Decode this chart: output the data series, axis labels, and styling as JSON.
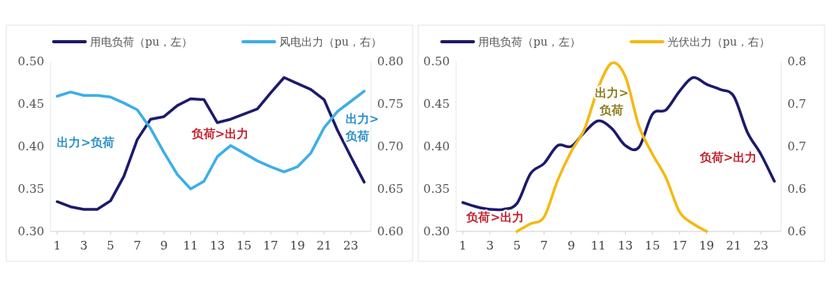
{
  "chart_data": [
    {
      "type": "line",
      "x": [
        1,
        2,
        3,
        4,
        5,
        6,
        7,
        8,
        9,
        10,
        11,
        12,
        13,
        14,
        15,
        16,
        17,
        18,
        19,
        20,
        21,
        22,
        23,
        24
      ],
      "xlim": [
        0.5,
        24.5
      ],
      "xticks": [
        1,
        3,
        5,
        7,
        9,
        11,
        13,
        15,
        17,
        19,
        21,
        23
      ],
      "ylim": [
        0.3,
        0.5
      ],
      "yticks": [
        {
          "value": 0.3,
          "label": "0.30"
        },
        {
          "value": 0.35,
          "label": "0.35"
        },
        {
          "value": 0.4,
          "label": "0.40"
        },
        {
          "value": 0.45,
          "label": "0.45"
        },
        {
          "value": 0.5,
          "label": "0.50"
        }
      ],
      "y2lim": [
        0.6,
        0.8
      ],
      "y2ticks": [
        {
          "value": 0.6,
          "label": "0.60"
        },
        {
          "value": 0.65,
          "label": "0.65"
        },
        {
          "value": 0.7,
          "label": "0.70"
        },
        {
          "value": 0.75,
          "label": "0.75"
        },
        {
          "value": 0.8,
          "label": "0.80"
        }
      ],
      "legend": "top",
      "series": [
        {
          "name": "用电负荷（pu，左）",
          "color": "#1c1a6b",
          "values": [
            0.335,
            0.329,
            0.326,
            0.326,
            0.336,
            0.365,
            0.408,
            0.432,
            0.435,
            0.448,
            0.456,
            0.455,
            0.428,
            0.432,
            0.438,
            0.444,
            0.463,
            0.481,
            0.474,
            0.467,
            0.455,
            0.419,
            0.388,
            0.358
          ]
        },
        {
          "name": "风电出力（pu，右）",
          "color": "#3daee9",
          "axis": "y2",
          "values": [
            0.759,
            0.764,
            0.76,
            0.76,
            0.758,
            0.751,
            0.743,
            0.721,
            0.693,
            0.667,
            0.65,
            0.659,
            0.688,
            0.701,
            0.692,
            0.683,
            0.676,
            0.67,
            0.676,
            0.692,
            0.722,
            0.741,
            0.753,
            0.765
          ]
        }
      ],
      "annotations": [
        "出力>负荷",
        "负荷>出力",
        "出力>负荷"
      ]
    },
    {
      "type": "line",
      "x": [
        1,
        2,
        3,
        4,
        5,
        6,
        7,
        8,
        9,
        10,
        11,
        12,
        13,
        14,
        15,
        16,
        17,
        18,
        19,
        20,
        21,
        22,
        23,
        24
      ],
      "xlim": [
        0.5,
        24.5
      ],
      "xticks": [
        1,
        3,
        5,
        7,
        9,
        11,
        13,
        15,
        17,
        19,
        21,
        23
      ],
      "ylim": [
        0.3,
        0.5
      ],
      "yticks": [
        {
          "value": 0.3,
          "label": "0.30"
        },
        {
          "value": 0.35,
          "label": "0.35"
        },
        {
          "value": 0.4,
          "label": "0.40"
        },
        {
          "value": 0.45,
          "label": "0.45"
        },
        {
          "value": 0.5,
          "label": "0.50"
        }
      ],
      "y2lim": [
        0.6,
        0.8
      ],
      "y2ticks": [
        {
          "value": 0.6,
          "label": "0.6"
        },
        {
          "value": 0.65,
          "label": "0.6"
        },
        {
          "value": 0.7,
          "label": "0.7"
        },
        {
          "value": 0.75,
          "label": "0.7"
        },
        {
          "value": 0.8,
          "label": "0.8"
        }
      ],
      "legend": "top",
      "series": [
        {
          "name": "用电负荷（pu，左）",
          "color": "#1c1a6b",
          "values": [
            0.334,
            0.329,
            0.326,
            0.326,
            0.333,
            0.368,
            0.38,
            0.401,
            0.4,
            0.417,
            0.43,
            0.421,
            0.401,
            0.399,
            0.438,
            0.443,
            0.465,
            0.481,
            0.473,
            0.467,
            0.459,
            0.417,
            0.391,
            0.359
          ]
        },
        {
          "name": "光伏出力（pu，右）",
          "color": "#f5b914",
          "axis": "y2",
          "values": [
            null,
            null,
            null,
            null,
            0.6,
            0.609,
            0.617,
            0.66,
            0.694,
            0.721,
            0.769,
            0.798,
            0.782,
            0.724,
            0.691,
            0.663,
            0.623,
            0.609,
            0.6,
            null,
            null,
            null,
            null,
            null
          ]
        }
      ],
      "annotations": [
        "出力>负荷",
        "负荷>出力",
        "负荷>出力"
      ]
    }
  ]
}
